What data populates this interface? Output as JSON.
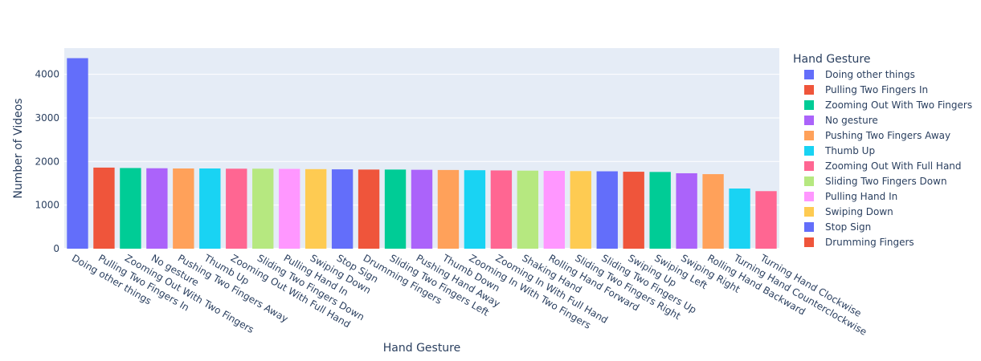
{
  "chart_data": {
    "type": "bar",
    "title": "",
    "xlabel": "Hand Gesture",
    "ylabel": "Number of Videos",
    "ylim": [
      0,
      4600
    ],
    "yticks": [
      0,
      1000,
      2000,
      3000,
      4000
    ],
    "grid": true,
    "legend_title": "Hand Gesture",
    "legend_placement": "right",
    "palette": [
      "#636efa",
      "#EF553B",
      "#00cc96",
      "#ab63fa",
      "#FFA15A",
      "#19d3f3",
      "#FF6692",
      "#B6E880",
      "#FF97FF",
      "#FECB52"
    ],
    "background": "#e5ecf6",
    "categories": [
      "Doing other things",
      "Pulling Two Fingers In",
      "Zooming Out With Two Fingers",
      "No gesture",
      "Pushing Two Fingers Away",
      "Thumb Up",
      "Zooming Out With Full Hand",
      "Sliding Two Fingers Down",
      "Pulling Hand In",
      "Swiping Down",
      "Stop Sign",
      "Drumming Fingers",
      "Sliding Two Fingers Left",
      "Pushing Hand Away",
      "Thumb Down",
      "Zooming In With Two Fingers",
      "Zooming In With Full Hand",
      "Shaking Hand",
      "Rolling Hand Forward",
      "Sliding Two Fingers Right",
      "Sliding Two Fingers Up",
      "Swiping Up",
      "Swiping Left",
      "Swiping Right",
      "Rolling Hand Backward",
      "Turning Hand Counterclockwise",
      "Turning Hand Clockwise"
    ],
    "values": [
      4370,
      1860,
      1850,
      1845,
      1840,
      1840,
      1835,
      1835,
      1830,
      1825,
      1820,
      1815,
      1815,
      1810,
      1805,
      1800,
      1795,
      1790,
      1785,
      1780,
      1775,
      1765,
      1760,
      1730,
      1710,
      1380,
      1320
    ],
    "legend_entries": [
      "Doing other things",
      "Pulling Two Fingers In",
      "Zooming Out With Two Fingers",
      "No gesture",
      "Pushing Two Fingers Away",
      "Thumb Up",
      "Zooming Out With Full Hand",
      "Sliding Two Fingers Down",
      "Pulling Hand In",
      "Swiping Down",
      "Stop Sign",
      "Drumming Fingers"
    ]
  }
}
